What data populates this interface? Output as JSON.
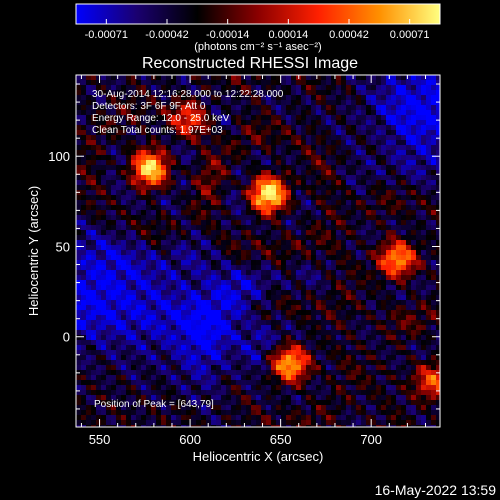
{
  "chart_data": {
    "type": "heatmap",
    "title": "Reconstructed RHESSI Image",
    "xlabel": "Heliocentric X (arcsec)",
    "ylabel": "Heliocentric Y (arcsec)",
    "xlim": [
      537,
      738
    ],
    "ylim": [
      -50,
      145
    ],
    "x_ticks": [
      550,
      600,
      650,
      700
    ],
    "y_ticks": [
      0,
      50,
      100
    ],
    "colorbar": {
      "ticks": [
        "-0.00071",
        "-0.00042",
        "-0.00014",
        "0.00014",
        "0.00042",
        "0.00071"
      ],
      "range": [
        -0.00071,
        0.00071
      ],
      "units_label": "(photons cm⁻² s⁻¹ asec⁻²)",
      "colormap": [
        "#0000ff",
        "#1a0070",
        "#000000",
        "#8b0000",
        "#ff2000",
        "#ff9000",
        "#ffff80"
      ]
    },
    "annotations": [
      "30-Aug-2014 12:16:28.000 to 12:22:28.000",
      "Detectors: 3F 6F 9F, Att 0",
      "Energy Range: 12.0 - 25.0 keV",
      "Clean     Total counts: 1.97E+03"
    ],
    "peak_label": "Position of Peak = [643,79]",
    "peak_position": [
      643,
      79
    ],
    "sources": [
      {
        "x": 643,
        "y": 79,
        "intensity": 1.0
      },
      {
        "x": 578,
        "y": 93,
        "intensity": 0.85
      },
      {
        "x": 715,
        "y": 43,
        "intensity": 0.75
      },
      {
        "x": 655,
        "y": -15,
        "intensity": 0.85
      },
      {
        "x": 735,
        "y": -25,
        "intensity": 0.55
      },
      {
        "x": 600,
        "y": 120,
        "intensity": 0.45
      }
    ],
    "negative_regions": [
      {
        "x": 550,
        "y": 25
      },
      {
        "x": 610,
        "y": 8
      },
      {
        "x": 730,
        "y": 125
      }
    ]
  },
  "footer_timestamp": "16-May-2022 13:59"
}
